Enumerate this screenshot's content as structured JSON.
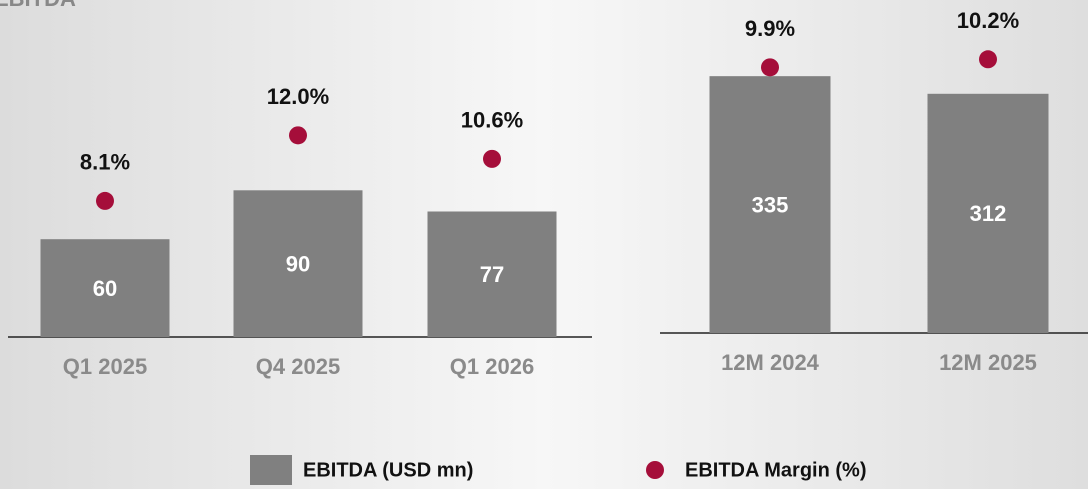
{
  "chart_data": [
    {
      "type": "bar",
      "title": "EBITDA",
      "categories": [
        "Q1 2025",
        "Q4 2025",
        "Q1 2026"
      ],
      "series": [
        {
          "name": "EBITDA (USD mn)",
          "color": "#808080",
          "values": [
            60,
            90,
            77
          ]
        },
        {
          "name": "EBITDA Margin (%)",
          "color": "#a50e3a",
          "axis": "y2",
          "values": [
            8.1,
            12.0,
            10.6
          ],
          "value_labels": [
            "8.1%",
            "12.0%",
            "10.6%"
          ]
        }
      ],
      "ylim": [
        0,
        200
      ],
      "y2lim": [
        0,
        19.4
      ]
    },
    {
      "type": "bar",
      "categories": [
        "12M 2024",
        "12M 2025"
      ],
      "series": [
        {
          "color": "#808080",
          "values": [
            335,
            312
          ]
        },
        {
          "color": "#a50e3a",
          "axis": "y2",
          "values": [
            9.9,
            10.2
          ],
          "value_labels": [
            "9.9%",
            "10.2%"
          ]
        }
      ],
      "ylim": [
        0,
        420
      ],
      "y2lim": [
        0,
        12
      ]
    }
  ]
}
